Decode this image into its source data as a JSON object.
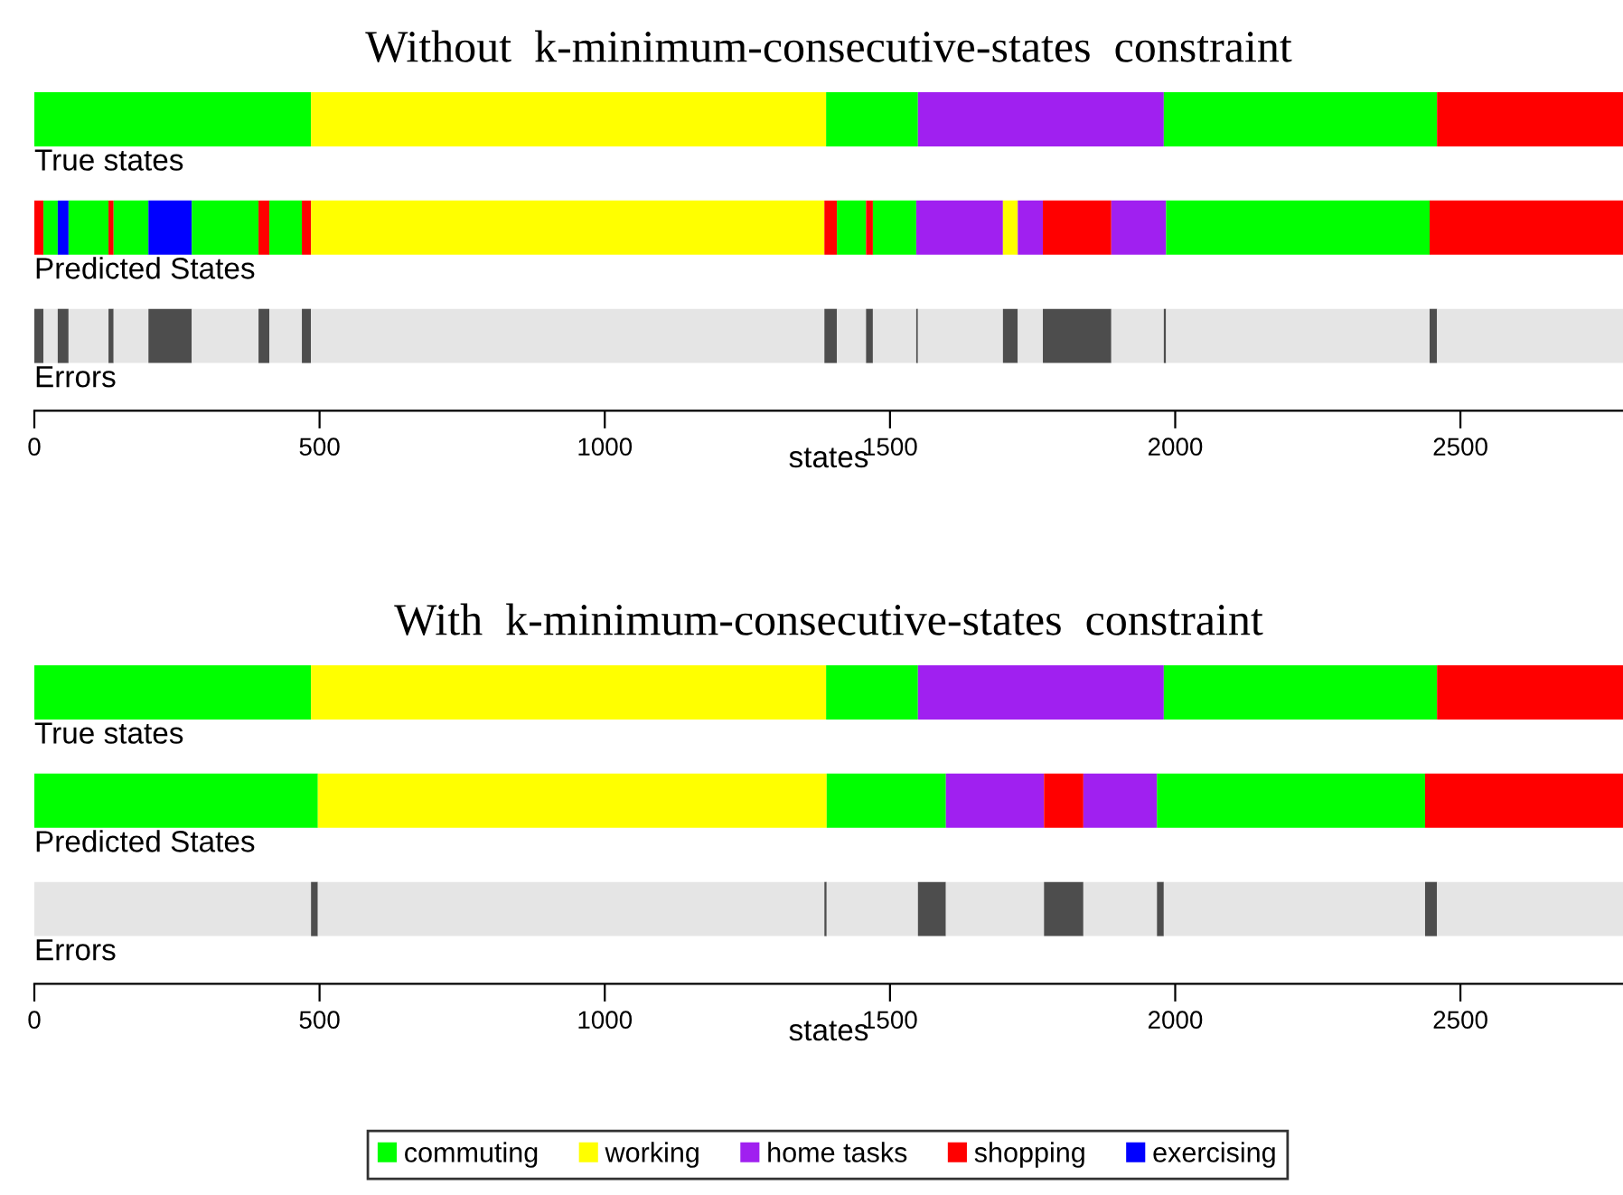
{
  "chart_data": [
    {
      "type": "bar",
      "orientation": "horizontal",
      "stacked": true,
      "title": "Without  k-minimum-consecutive-states  constraint",
      "xlabel": "states",
      "categories": [
        "True states",
        "Predicted States",
        "Errors"
      ],
      "xlim": [
        0,
        2785
      ],
      "xticks": [
        0,
        500,
        1000,
        1500,
        2000,
        2500
      ],
      "grid": false,
      "legend": false,
      "series": [
        {
          "values": [
            485,
            16,
            16
          ],
          "colors": [
            "#00ff00",
            "#ff0000",
            "#4d4d4d"
          ]
        },
        {
          "values": [
            903,
            25,
            25
          ],
          "colors": [
            "#ffff00",
            "#00ff00",
            "#e5e5e5"
          ]
        },
        {
          "values": [
            161,
            19,
            19
          ],
          "colors": [
            "#00ff00",
            "#0000ff",
            "#4d4d4d"
          ]
        },
        {
          "values": [
            431,
            70,
            70
          ],
          "colors": [
            "#a020f0",
            "#00ff00",
            "#e5e5e5"
          ]
        },
        {
          "values": [
            479,
            9,
            9
          ],
          "colors": [
            "#00ff00",
            "#ff0000",
            "#4d4d4d"
          ]
        },
        {
          "values": [
            326,
            61,
            61
          ],
          "colors": [
            "#ff0000",
            "#00ff00",
            "#e5e5e5"
          ]
        },
        {
          "values": [
            null,
            76,
            76
          ],
          "colors": [
            null,
            "#0000ff",
            "#4d4d4d"
          ]
        },
        {
          "values": [
            null,
            117,
            117
          ],
          "colors": [
            null,
            "#00ff00",
            "#e5e5e5"
          ]
        },
        {
          "values": [
            null,
            19,
            19
          ],
          "colors": [
            null,
            "#ff0000",
            "#4d4d4d"
          ]
        },
        {
          "values": [
            null,
            57,
            57
          ],
          "colors": [
            null,
            "#00ff00",
            "#e5e5e5"
          ]
        },
        {
          "values": [
            null,
            16,
            16
          ],
          "colors": [
            null,
            "#ff0000",
            "#4d4d4d"
          ]
        },
        {
          "values": [
            null,
            900,
            900
          ],
          "colors": [
            null,
            "#ffff00",
            "#e5e5e5"
          ]
        },
        {
          "values": [
            null,
            22,
            22
          ],
          "colors": [
            null,
            "#ff0000",
            "#4d4d4d"
          ]
        },
        {
          "values": [
            null,
            51,
            51
          ],
          "colors": [
            null,
            "#00ff00",
            "#e5e5e5"
          ]
        },
        {
          "values": [
            null,
            12,
            12
          ],
          "colors": [
            null,
            "#ff0000",
            "#4d4d4d"
          ]
        },
        {
          "values": [
            null,
            76,
            76
          ],
          "colors": [
            null,
            "#00ff00",
            "#e5e5e5"
          ]
        },
        {
          "values": [
            null,
            152,
            3
          ],
          "colors": [
            null,
            "#a020f0",
            "#4d4d4d"
          ]
        },
        {
          "values": [
            null,
            26,
            149
          ],
          "colors": [
            null,
            "#ffff00",
            "#e5e5e5"
          ]
        },
        {
          "values": [
            null,
            44,
            26
          ],
          "colors": [
            null,
            "#a020f0",
            "#4d4d4d"
          ]
        },
        {
          "values": [
            null,
            120,
            44
          ],
          "colors": [
            null,
            "#ff0000",
            "#e5e5e5"
          ]
        },
        {
          "values": [
            null,
            96,
            120
          ],
          "colors": [
            null,
            "#a020f0",
            "#4d4d4d"
          ]
        },
        {
          "values": [
            null,
            462,
            92
          ],
          "colors": [
            null,
            "#00ff00",
            "#e5e5e5"
          ]
        },
        {
          "values": [
            null,
            339,
            4
          ],
          "colors": [
            null,
            "#ff0000",
            "#4d4d4d"
          ]
        },
        {
          "values": [
            null,
            null,
            462
          ],
          "colors": [
            null,
            null,
            "#e5e5e5"
          ]
        },
        {
          "values": [
            null,
            null,
            13
          ],
          "colors": [
            null,
            null,
            "#4d4d4d"
          ]
        },
        {
          "values": [
            null,
            null,
            326
          ],
          "colors": [
            null,
            null,
            "#e5e5e5"
          ]
        }
      ]
    },
    {
      "type": "bar",
      "orientation": "horizontal",
      "stacked": true,
      "title": "With  k-minimum-consecutive-states  constraint",
      "xlabel": "states",
      "categories": [
        "True states",
        "Predicted States",
        "Errors"
      ],
      "xlim": [
        0,
        2785
      ],
      "xticks": [
        0,
        500,
        1000,
        1500,
        2000,
        2500
      ],
      "grid": false,
      "legend": "bottom",
      "series": [
        {
          "values": [
            485,
            497,
            485
          ],
          "colors": [
            "#00ff00",
            "#00ff00",
            "#e5e5e5"
          ]
        },
        {
          "values": [
            903,
            892,
            12
          ],
          "colors": [
            "#ffff00",
            "#ffff00",
            "#4d4d4d"
          ]
        },
        {
          "values": [
            161,
            209,
            888
          ],
          "colors": [
            "#00ff00",
            "#00ff00",
            "#e5e5e5"
          ]
        },
        {
          "values": [
            431,
            172,
            4
          ],
          "colors": [
            "#a020f0",
            "#a020f0",
            "#4d4d4d"
          ]
        },
        {
          "values": [
            479,
            69,
            160
          ],
          "colors": [
            "#00ff00",
            "#ff0000",
            "#e5e5e5"
          ]
        },
        {
          "values": [
            326,
            129,
            49
          ],
          "colors": [
            "#ff0000",
            "#a020f0",
            "#4d4d4d"
          ]
        },
        {
          "values": [
            null,
            470,
            172
          ],
          "colors": [
            null,
            "#00ff00",
            "#e5e5e5"
          ]
        },
        {
          "values": [
            null,
            347,
            69
          ],
          "colors": [
            null,
            "#ff0000",
            "#4d4d4d"
          ]
        },
        {
          "values": [
            null,
            null,
            129
          ],
          "colors": [
            null,
            null,
            "#e5e5e5"
          ]
        },
        {
          "values": [
            null,
            null,
            12
          ],
          "colors": [
            null,
            null,
            "#4d4d4d"
          ]
        },
        {
          "values": [
            null,
            null,
            458
          ],
          "colors": [
            null,
            null,
            "#e5e5e5"
          ]
        },
        {
          "values": [
            null,
            null,
            21
          ],
          "colors": [
            null,
            null,
            "#4d4d4d"
          ]
        },
        {
          "values": [
            null,
            null,
            326
          ],
          "colors": [
            null,
            null,
            "#e5e5e5"
          ]
        },
        {
          "name": "commuting",
          "color": "#00ff00",
          "values": [
            null,
            null,
            null
          ]
        },
        {
          "name": "working",
          "color": "#ffff00",
          "values": [
            null,
            null,
            null
          ]
        },
        {
          "name": "home tasks",
          "color": "#a020f0",
          "values": [
            null,
            null,
            null
          ]
        },
        {
          "name": "shopping",
          "color": "#ff0000",
          "values": [
            null,
            null,
            null
          ]
        },
        {
          "name": "exercising",
          "color": "#0000ff",
          "values": [
            null,
            null,
            null
          ]
        }
      ]
    }
  ]
}
